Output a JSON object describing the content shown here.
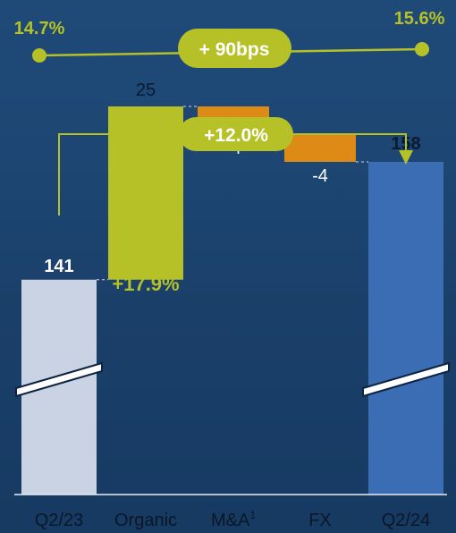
{
  "chart_data": {
    "type": "waterfall",
    "categories": [
      "Q2/23",
      "Organic",
      "M&A",
      "FX",
      "Q2/24"
    ],
    "category_superscripts": [
      "",
      "",
      "1",
      "",
      ""
    ],
    "values": [
      141,
      25,
      -4,
      -4,
      158
    ],
    "value_labels": [
      "141",
      "25",
      "-4",
      "-4",
      "158"
    ],
    "segment_kinds": [
      "total",
      "increase",
      "decrease",
      "decrease",
      "total"
    ],
    "broken_axis_bars": [
      "Q2/23",
      "Q2/24"
    ],
    "ylim": [
      110,
      162
    ],
    "organic_growth_label": "+17.9%",
    "total_growth_label": "+12.0%",
    "margin_bridge": {
      "start_label": "14.7%",
      "end_label": "15.6%",
      "change_label": "+ 90bps"
    },
    "colors": {
      "start_bar": "#c9d3e4",
      "end_bar": "#3a6db3",
      "increase": "#b5c127",
      "decrease": "#dd8a17",
      "accent": "#b5c127",
      "value_text_light": "#ffffff",
      "value_text_dark": "#0a1a30",
      "axis": "#e8eef5"
    }
  }
}
